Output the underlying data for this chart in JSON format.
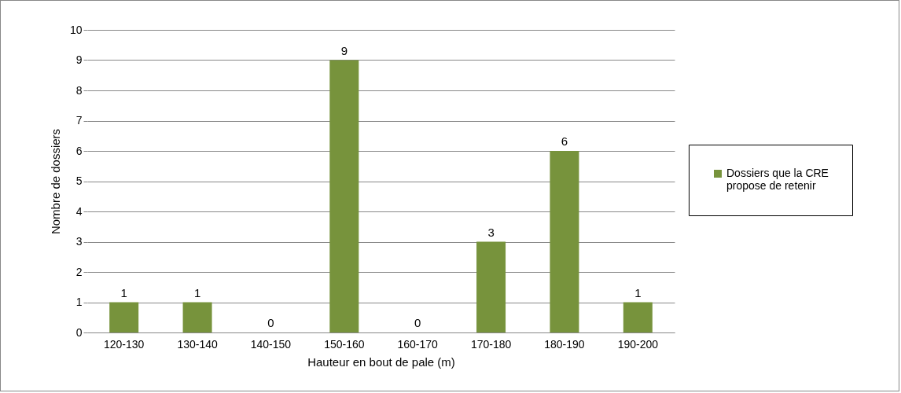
{
  "chart_data": {
    "type": "bar",
    "xlabel": "Hauteur en bout de pale (m)",
    "ylabel": "Nombre de dossiers",
    "categories": [
      "120-130",
      "130-140",
      "140-150",
      "150-160",
      "160-170",
      "170-180",
      "180-190",
      "190-200"
    ],
    "series": [
      {
        "name": "Dossiers que la CRE propose de retenir",
        "color": "#77933c",
        "values": [
          1,
          1,
          0,
          9,
          0,
          3,
          6,
          1
        ]
      }
    ],
    "ylim": [
      0,
      10
    ],
    "yticks": [
      0,
      1,
      2,
      3,
      4,
      5,
      6,
      7,
      8,
      9,
      10
    ],
    "grid": "y",
    "legend": "right",
    "data_labels": true
  }
}
